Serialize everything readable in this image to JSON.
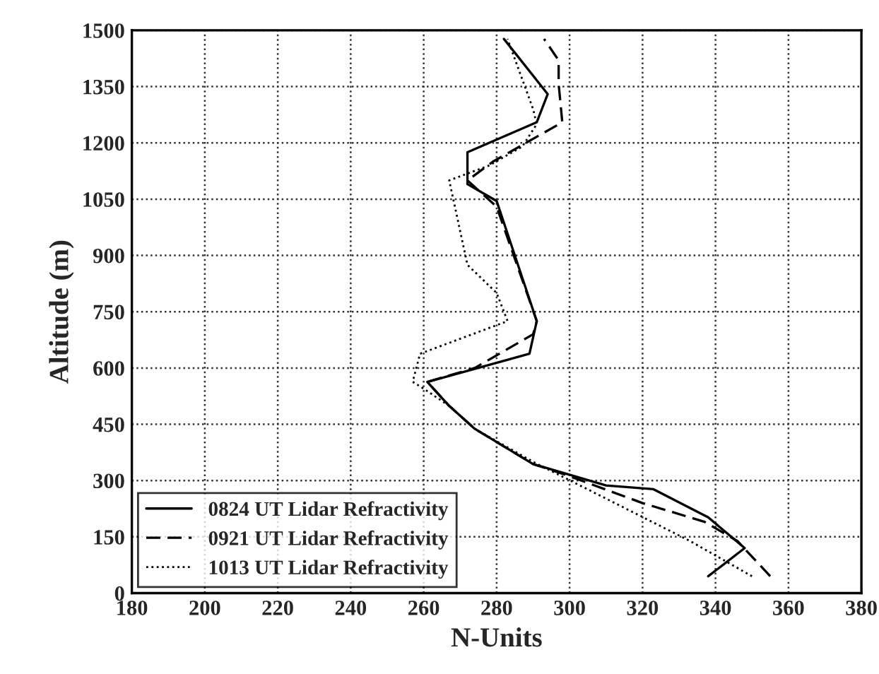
{
  "chart_data": {
    "type": "line",
    "xlabel": "N-Units",
    "ylabel": "Altitude (m)",
    "xlim": [
      180,
      380
    ],
    "xticks": [
      180,
      200,
      220,
      240,
      260,
      280,
      300,
      320,
      340,
      360,
      380
    ],
    "ylim": [
      0,
      1500
    ],
    "yticks": [
      0,
      150,
      300,
      450,
      600,
      750,
      900,
      1050,
      1200,
      1350,
      1500
    ],
    "grid": true,
    "legend": "bottom left",
    "series": [
      {
        "name": "0824 UT Lidar Refractivity",
        "color": "#000000",
        "line_style": "solid",
        "x": [
          338,
          348,
          338,
          323,
          310,
          290,
          274,
          267,
          261,
          289,
          291,
          280,
          272,
          272,
          291,
          294,
          282
        ],
        "values": [
          45,
          120,
          202,
          277,
          287,
          344,
          438,
          499,
          563,
          638,
          725,
          1045,
          1090,
          1175,
          1255,
          1330,
          1477
        ]
      },
      {
        "name": "0921 UT Lidar Refractivity",
        "color": "#000000",
        "line_style": "dashed",
        "x": [
          355,
          346,
          337,
          320,
          299,
          290,
          274,
          267,
          261,
          274,
          290,
          291,
          280,
          272,
          279,
          298,
          297,
          297,
          293
        ],
        "values": [
          45,
          139,
          190,
          240,
          315,
          344,
          438,
          499,
          563,
          600,
          690,
          725,
          1030,
          1100,
          1150,
          1255,
          1357,
          1420,
          1477
        ]
      },
      {
        "name": "1013 UT Lidar Refractivity",
        "color": "#000000",
        "line_style": "dotted",
        "x": [
          350,
          333,
          290,
          274,
          267,
          260,
          257,
          259,
          283,
          280,
          272,
          267,
          278,
          287,
          291,
          290,
          283
        ],
        "values": [
          45,
          139,
          350,
          438,
          499,
          545,
          563,
          638,
          725,
          800,
          875,
          1100,
          1140,
          1190,
          1250,
          1290,
          1477
        ]
      }
    ]
  }
}
